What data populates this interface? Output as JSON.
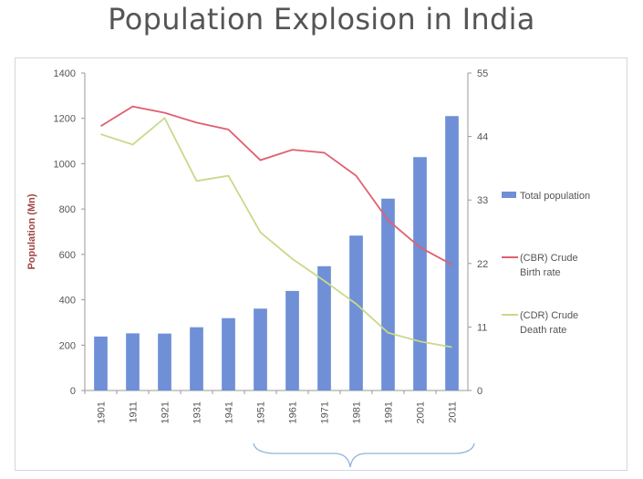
{
  "page": {
    "title": "Population Explosion in India"
  },
  "chart_data": {
    "type": "bar",
    "categories": [
      "1901",
      "1911",
      "1921",
      "1931",
      "1941",
      "1951",
      "1961",
      "1971",
      "1981",
      "1991",
      "2001",
      "2011"
    ],
    "ylabel": "Population (Mn)",
    "ylim": [
      0,
      1400
    ],
    "yticks": [
      0,
      200,
      400,
      600,
      800,
      1000,
      1200,
      1400
    ],
    "y2lim": [
      0,
      55
    ],
    "y2ticks": [
      0,
      11,
      22,
      33,
      44,
      55
    ],
    "grid": false,
    "legend_position": "right",
    "series": [
      {
        "name": "Total population",
        "type": "bar",
        "axis": "left",
        "color": "#6f8fd6",
        "values": [
          238,
          252,
          251,
          279,
          319,
          361,
          439,
          548,
          683,
          846,
          1029,
          1210
        ]
      },
      {
        "name": "(CBR) Crude Birth rate",
        "type": "line",
        "axis": "right",
        "color": "#e06070",
        "values": [
          45.8,
          49.2,
          48.1,
          46.4,
          45.2,
          39.9,
          41.7,
          41.2,
          37.2,
          29.5,
          24.8,
          21.8
        ]
      },
      {
        "name": "(CDR) Crude Death rate",
        "type": "line",
        "axis": "right",
        "color": "#c9d98a",
        "values": [
          44.4,
          42.6,
          47.2,
          36.3,
          37.2,
          27.4,
          22.8,
          19.0,
          15.0,
          10.0,
          8.5,
          7.5
        ]
      }
    ]
  }
}
